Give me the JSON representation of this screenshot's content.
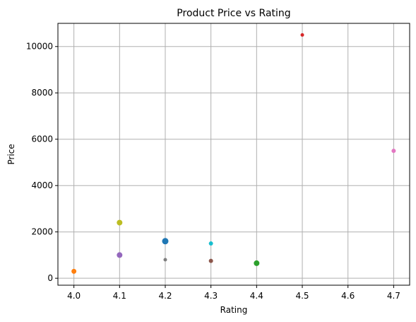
{
  "chart_data": {
    "type": "scatter",
    "title": "Product Price vs Rating",
    "xlabel": "Rating",
    "ylabel": "Price",
    "xlim": [
      3.965,
      4.735
    ],
    "ylim": [
      -300,
      11000
    ],
    "xticks": [
      4.0,
      4.1,
      4.2,
      4.3,
      4.4,
      4.5,
      4.6,
      4.7
    ],
    "yticks": [
      0,
      2000,
      4000,
      6000,
      8000,
      10000
    ],
    "grid": true,
    "points": [
      {
        "x": 4.2,
        "y": 1600,
        "size": 9,
        "color": "#1f77b4"
      },
      {
        "x": 4.0,
        "y": 300,
        "size": 7,
        "color": "#ff7f0e"
      },
      {
        "x": 4.4,
        "y": 650,
        "size": 8,
        "color": "#2ca02c"
      },
      {
        "x": 4.5,
        "y": 10500,
        "size": 5,
        "color": "#d62728"
      },
      {
        "x": 4.1,
        "y": 1000,
        "size": 8,
        "color": "#9467bd"
      },
      {
        "x": 4.3,
        "y": 750,
        "size": 6,
        "color": "#8c564b"
      },
      {
        "x": 4.7,
        "y": 5500,
        "size": 6,
        "color": "#e377c2"
      },
      {
        "x": 4.2,
        "y": 800,
        "size": 5,
        "color": "#7f7f7f"
      },
      {
        "x": 4.1,
        "y": 2400,
        "size": 8,
        "color": "#bcbd22"
      },
      {
        "x": 4.3,
        "y": 1500,
        "size": 6,
        "color": "#17becf"
      }
    ]
  }
}
